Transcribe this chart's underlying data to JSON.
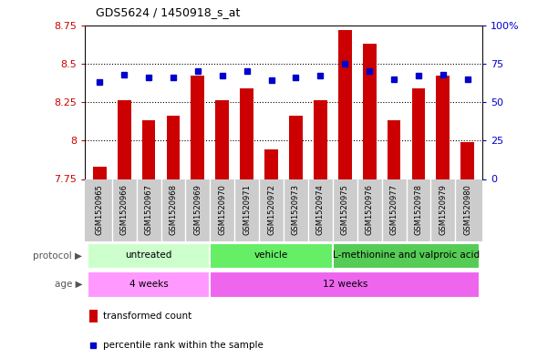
{
  "title": "GDS5624 / 1450918_s_at",
  "samples": [
    "GSM1520965",
    "GSM1520966",
    "GSM1520967",
    "GSM1520968",
    "GSM1520969",
    "GSM1520970",
    "GSM1520971",
    "GSM1520972",
    "GSM1520973",
    "GSM1520974",
    "GSM1520975",
    "GSM1520976",
    "GSM1520977",
    "GSM1520978",
    "GSM1520979",
    "GSM1520980"
  ],
  "transformed_count": [
    7.83,
    8.26,
    8.13,
    8.16,
    8.42,
    8.26,
    8.34,
    7.94,
    8.16,
    8.26,
    8.72,
    8.63,
    8.13,
    8.34,
    8.42,
    7.99
  ],
  "percentile_rank": [
    63,
    68,
    66,
    66,
    70,
    67,
    70,
    64,
    66,
    67,
    75,
    70,
    65,
    67,
    68,
    65
  ],
  "bar_color": "#cc0000",
  "dot_color": "#0000cc",
  "ylim_left": [
    7.75,
    8.75
  ],
  "ylim_right": [
    0,
    100
  ],
  "yticks_left": [
    7.75,
    8.0,
    8.25,
    8.5,
    8.75
  ],
  "yticks_right": [
    0,
    25,
    50,
    75,
    100
  ],
  "ytick_labels_left": [
    "7.75",
    "8",
    "8.25",
    "8.5",
    "8.75"
  ],
  "ytick_labels_right": [
    "0",
    "25",
    "50",
    "75",
    "100%"
  ],
  "grid_values": [
    8.0,
    8.25,
    8.5
  ],
  "protocol_groups": [
    {
      "label": "untreated",
      "start": 0,
      "end": 4,
      "color": "#ccffcc"
    },
    {
      "label": "vehicle",
      "start": 5,
      "end": 9,
      "color": "#66ee66"
    },
    {
      "label": "L-methionine and valproic acid",
      "start": 10,
      "end": 15,
      "color": "#55cc55"
    }
  ],
  "age_groups": [
    {
      "label": "4 weeks",
      "start": 0,
      "end": 4,
      "color": "#ff99ff"
    },
    {
      "label": "12 weeks",
      "start": 5,
      "end": 15,
      "color": "#ee66ee"
    }
  ],
  "legend_items": [
    {
      "label": "transformed count",
      "color": "#cc0000"
    },
    {
      "label": "percentile rank within the sample",
      "color": "#0000cc"
    }
  ],
  "background_color": "#ffffff",
  "xtick_bg_color": "#cccccc",
  "protocol_label": "protocol",
  "age_label": "age"
}
